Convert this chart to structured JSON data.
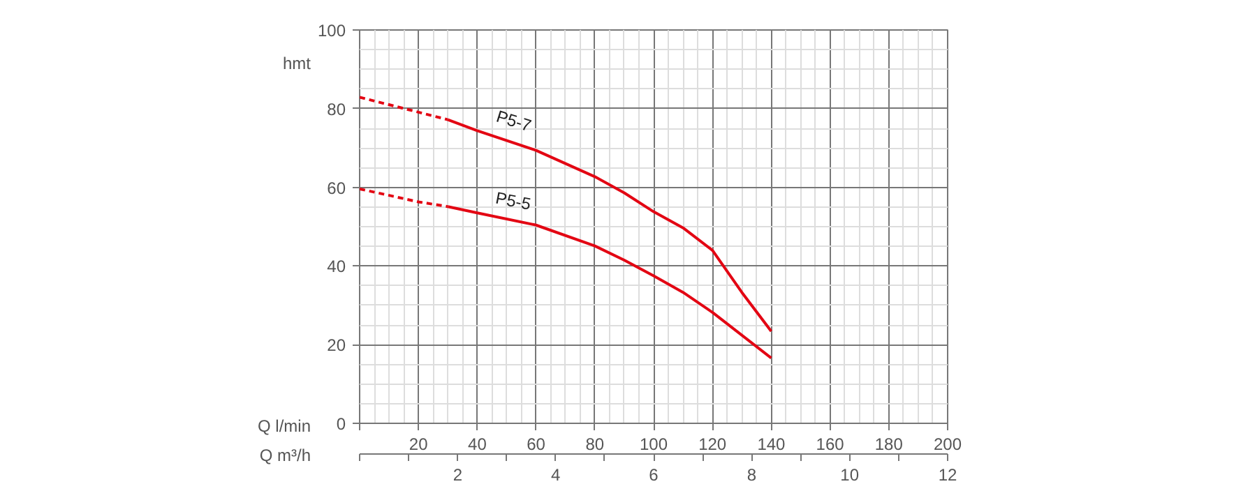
{
  "chart_data": {
    "type": "line",
    "ylabel": "hmt",
    "xlabel": "Q l/min",
    "x2label": "Q m³/h",
    "xlim": [
      0,
      200
    ],
    "xticks": [
      {
        "value": 0,
        "label": null
      },
      20,
      40,
      60,
      80,
      100,
      120,
      140,
      160,
      180,
      200
    ],
    "x2lim": [
      0,
      12
    ],
    "x2ticks": [
      {
        "value": 0,
        "label": null
      },
      2,
      4,
      6,
      8,
      10,
      12
    ],
    "ylim": [
      0,
      100
    ],
    "yticks": [
      0,
      20,
      40,
      60,
      80,
      100
    ],
    "grid": true,
    "series": [
      {
        "color": "#e30613",
        "line_style": "dashed",
        "x": [
          0,
          20,
          30
        ],
        "values": [
          82.9,
          79.1,
          77.2
        ]
      },
      {
        "name": "P5-7",
        "color": "#e30613",
        "line_style": "solid",
        "x": [
          30,
          40,
          60,
          80,
          90,
          100,
          110,
          120,
          130,
          140
        ],
        "values": [
          77.2,
          74.4,
          69.4,
          62.7,
          58.6,
          53.8,
          49.7,
          44.0,
          33.3,
          23.4
        ]
      },
      {
        "color": "#e30613",
        "line_style": "dashed",
        "x": [
          0,
          20,
          30
        ],
        "values": [
          59.6,
          56.3,
          55.1
        ]
      },
      {
        "name": "P5-5",
        "color": "#e30613",
        "line_style": "solid",
        "x": [
          30,
          40,
          60,
          80,
          90,
          100,
          110,
          120,
          140
        ],
        "values": [
          55.1,
          53.5,
          50.4,
          45.1,
          41.5,
          37.5,
          33.3,
          28.2,
          16.6
        ]
      }
    ]
  }
}
